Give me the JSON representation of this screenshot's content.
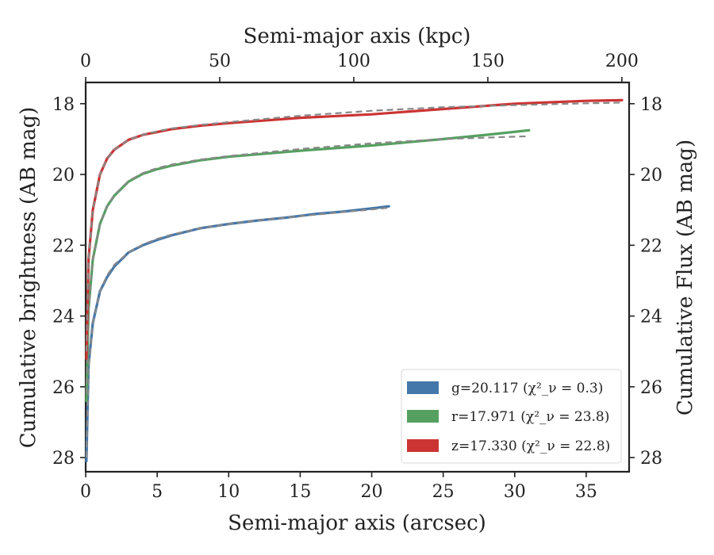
{
  "chart_data": {
    "type": "line",
    "xlabel": "Semi-major axis (arcsec)",
    "ylabel": "Cumulative brightness (AB mag)",
    "top_xlabel": "Semi-major axis (kpc)",
    "right_ylabel": "Cumulative Flux (AB mag)",
    "xlim": [
      0,
      38
    ],
    "ylim": [
      28.4,
      17.4
    ],
    "y_inverted": true,
    "top_xlim": [
      0,
      202.7
    ],
    "x_ticks": [
      "0",
      "5",
      "10",
      "15",
      "20",
      "25",
      "30",
      "35"
    ],
    "y_ticks": [
      "18",
      "20",
      "22",
      "24",
      "26",
      "28"
    ],
    "top_x_ticks": [
      "0",
      "50",
      "100",
      "150",
      "200"
    ],
    "legend_position": "lower-right",
    "grid": false,
    "series": [
      {
        "name": "g=20.117 (χ²_ν = 0.3)",
        "legend_main": "g=20.117",
        "legend_chi": "(χ²_ν = 0.3)",
        "color": "#4477aa",
        "x": [
          0.05,
          0.2,
          0.5,
          1.0,
          1.5,
          2.0,
          3.0,
          4.0,
          5.0,
          6.0,
          8.0,
          10.0,
          12.0,
          14.0,
          16.0,
          18.0,
          20.0,
          21.2
        ],
        "y": [
          28.1,
          25.4,
          24.2,
          23.3,
          22.9,
          22.6,
          22.2,
          22.0,
          21.85,
          21.72,
          21.52,
          21.4,
          21.3,
          21.22,
          21.12,
          21.05,
          20.96,
          20.9
        ],
        "model_x": [
          0.05,
          0.2,
          0.5,
          1.0,
          1.5,
          2.0,
          3.0,
          4.0,
          5.0,
          6.0,
          8.0,
          10.0,
          12.0,
          14.0,
          16.0,
          18.0,
          20.0,
          21.2
        ],
        "model_y": [
          28.0,
          25.5,
          24.2,
          23.3,
          22.85,
          22.55,
          22.2,
          21.98,
          21.82,
          21.7,
          21.52,
          21.4,
          21.3,
          21.22,
          21.14,
          21.06,
          20.99,
          20.94
        ]
      },
      {
        "name": "r=17.971 (χ²_ν = 23.8)",
        "legend_main": "r=17.971",
        "legend_chi": "(χ²_ν = 23.8)",
        "color": "#55a060",
        "x": [
          0.05,
          0.2,
          0.5,
          1.0,
          1.5,
          2.0,
          3.0,
          4.0,
          5.0,
          6.0,
          8.0,
          10.0,
          15.0,
          20.0,
          25.0,
          28.0,
          31.0
        ],
        "y": [
          26.4,
          23.8,
          22.4,
          21.4,
          20.9,
          20.6,
          20.2,
          19.98,
          19.85,
          19.75,
          19.6,
          19.5,
          19.33,
          19.18,
          19.0,
          18.88,
          18.75
        ],
        "model_x": [
          0.05,
          0.2,
          0.5,
          1.0,
          1.5,
          2.0,
          3.0,
          4.0,
          5.0,
          6.0,
          8.0,
          10.0,
          15.0,
          20.0,
          25.0,
          31.0
        ],
        "model_y": [
          26.2,
          23.8,
          22.4,
          21.4,
          20.9,
          20.58,
          20.18,
          19.96,
          19.82,
          19.72,
          19.58,
          19.48,
          19.28,
          19.12,
          19.0,
          18.92
        ]
      },
      {
        "name": "z=17.330 (χ²_ν = 22.8)",
        "legend_main": "z=17.330",
        "legend_chi": "(χ²_ν = 22.8)",
        "color": "#cc3333",
        "x": [
          0.05,
          0.2,
          0.5,
          1.0,
          1.5,
          2.0,
          3.0,
          4.0,
          5.0,
          6.0,
          8.0,
          10.0,
          15.0,
          20.0,
          25.0,
          30.0,
          35.0,
          37.5
        ],
        "y": [
          25.2,
          22.4,
          21.0,
          20.0,
          19.55,
          19.3,
          19.02,
          18.88,
          18.8,
          18.72,
          18.62,
          18.55,
          18.4,
          18.3,
          18.15,
          18.0,
          17.92,
          17.9
        ],
        "model_x": [
          0.05,
          0.2,
          0.5,
          1.0,
          1.5,
          2.0,
          3.0,
          4.0,
          5.0,
          6.0,
          8.0,
          10.0,
          15.0,
          20.0,
          25.0,
          30.0,
          35.0,
          37.5
        ],
        "model_y": [
          25.0,
          22.4,
          21.0,
          20.0,
          19.55,
          19.3,
          19.02,
          18.88,
          18.78,
          18.7,
          18.6,
          18.52,
          18.34,
          18.2,
          18.1,
          18.04,
          17.99,
          17.97
        ]
      }
    ],
    "model_style": {
      "name": "model",
      "color": "#888888",
      "dash": "dashed"
    }
  }
}
